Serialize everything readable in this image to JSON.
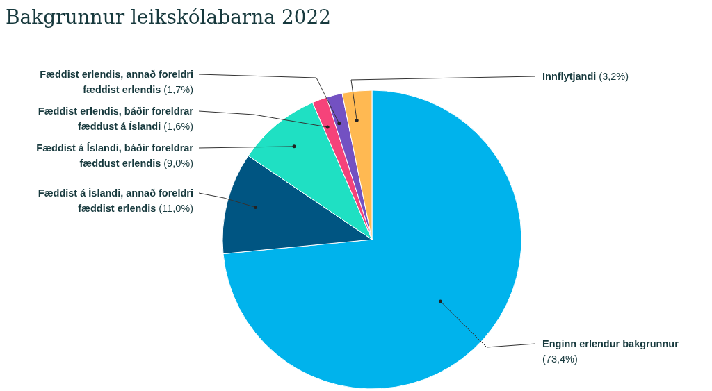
{
  "chart_data": {
    "type": "pie",
    "title": "Bakgrunnur leikskólabarna 2022",
    "categories": [
      "Enginn erlendur bakgrunnur",
      "Fæddist á Íslandi, annað foreldri fæddist erlendis",
      "Fæddist á Íslandi, báðir foreldrar fæddust erlendis",
      "Fæddist erlendis, báðir foreldrar fæddust á Íslandi",
      "Fæddist erlendis, annað foreldri fæddist erlendis",
      "Innflytjandi"
    ],
    "values": [
      73.4,
      11.0,
      9.0,
      1.6,
      1.7,
      3.2
    ],
    "colors": [
      "#00b3ec",
      "#005582",
      "#1fe0c3",
      "#f5437a",
      "#7351c2",
      "#ffb952"
    ],
    "value_labels": [
      "(73,4%)",
      "(11,0%)",
      "(9,0%)",
      "(1,6%)",
      "(1,7%)",
      "(3,2%)"
    ]
  }
}
